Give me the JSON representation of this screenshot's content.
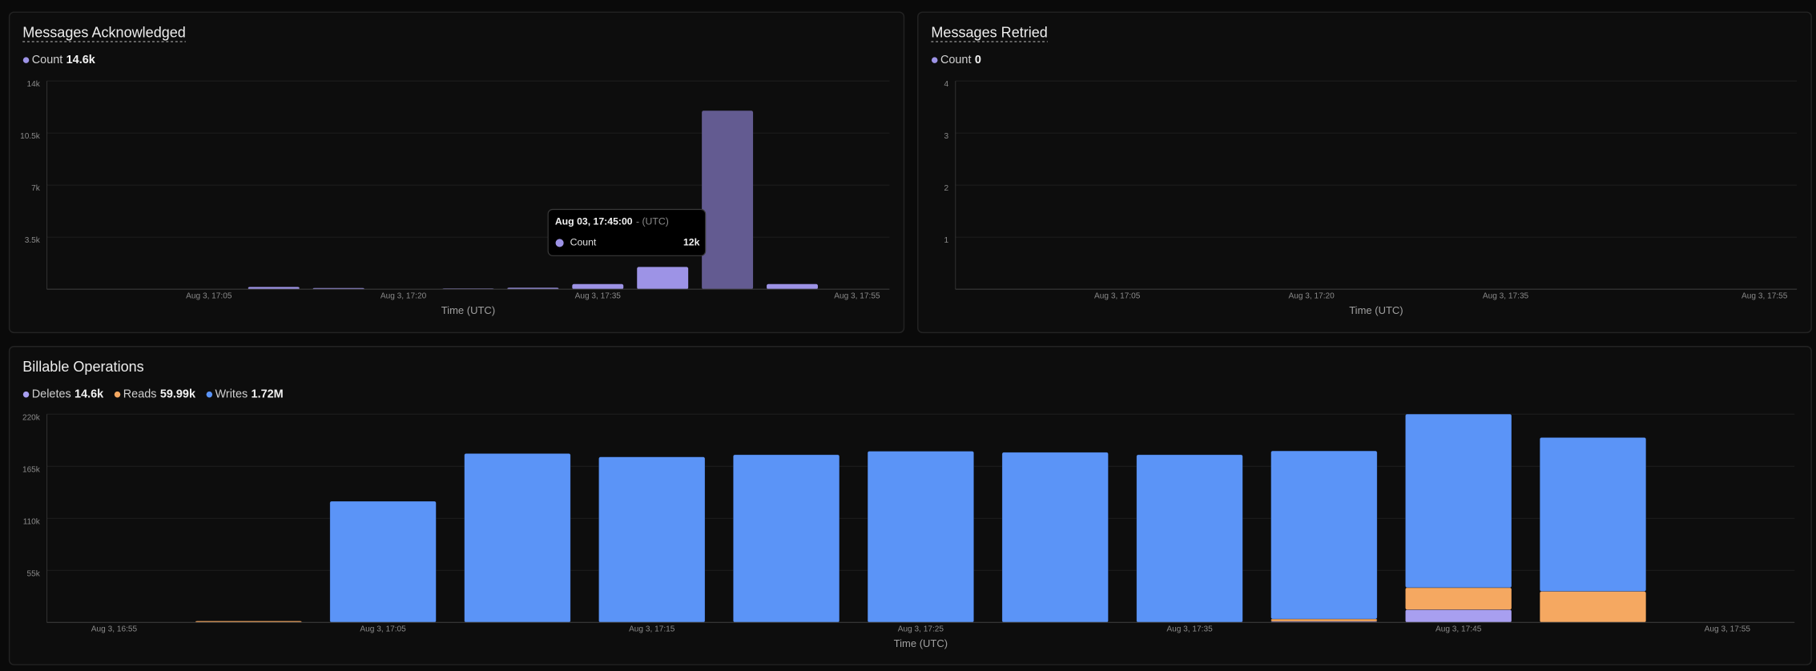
{
  "chart_data": [
    {
      "type": "bar",
      "title": "Messages Acknowledged",
      "x_label": "Time (UTC)",
      "categories": [
        null,
        null,
        "Aug 3, 17:05",
        null,
        null,
        "Aug 3, 17:20",
        null,
        null,
        "Aug 3, 17:35",
        null,
        null,
        null,
        "Aug 3, 17:55"
      ],
      "series": [
        {
          "name": "Count",
          "total": "14.6k",
          "color": "#9d93e6",
          "values": [
            0,
            0,
            0,
            150,
            80,
            0,
            50,
            100,
            350,
            1500,
            12000,
            350,
            0
          ]
        }
      ],
      "hover_index": 10,
      "hover_color": "#635b91",
      "ylim": [
        0,
        14000
      ],
      "yticks": [
        {
          "value": 3500,
          "label": "3.5k"
        },
        {
          "value": 7000,
          "label": "7k"
        },
        {
          "value": 10500,
          "label": "10.5k"
        },
        {
          "value": 14000,
          "label": "14k"
        }
      ],
      "grid": true,
      "tooltip": {
        "title": "Aug 03, 17:45:00",
        "suffix": "- (UTC)",
        "label": "Count",
        "value_label": "12k"
      }
    },
    {
      "type": "bar",
      "title": "Messages Retried",
      "x_label": "Time (UTC)",
      "categories": [
        null,
        null,
        "Aug 3, 17:05",
        null,
        null,
        "Aug 3, 17:20",
        null,
        null,
        "Aug 3, 17:35",
        null,
        null,
        null,
        "Aug 3, 17:55"
      ],
      "series": [
        {
          "name": "Count",
          "total": 0,
          "color": "#9d93e6",
          "values": [
            0,
            0,
            0,
            0,
            0,
            0,
            0,
            0,
            0,
            0,
            0,
            0,
            0
          ]
        }
      ],
      "ylim": [
        0,
        4
      ],
      "yticks": [
        1,
        2,
        3,
        4
      ],
      "grid": true
    },
    {
      "type": "stacked_bar",
      "title": "Billable Operations",
      "x_label": "Time (UTC)",
      "categories": [
        "Aug 3, 16:55",
        null,
        "Aug 3, 17:05",
        null,
        "Aug 3, 17:15",
        null,
        "Aug 3, 17:25",
        null,
        "Aug 3, 17:35",
        null,
        "Aug 3, 17:45",
        null,
        "Aug 3, 17:55"
      ],
      "series": [
        {
          "name": "Deletes",
          "total": "14.6k",
          "color": "#a89ff0",
          "values": [
            0,
            0,
            0,
            0,
            0,
            0,
            0,
            0,
            0,
            1100,
            13500,
            0,
            0
          ]
        },
        {
          "name": "Reads",
          "total": "59.99k",
          "color": "#f5a861",
          "values": [
            0,
            1500,
            0,
            0,
            0,
            0,
            0,
            0,
            0,
            2500,
            23200,
            32790,
            0
          ]
        },
        {
          "name": "Writes",
          "total": "1.72M",
          "color": "#5b94f7",
          "values": [
            0,
            0,
            128000,
            178400,
            174800,
            177200,
            180900,
            179700,
            177200,
            177600,
            183400,
            162600,
            0
          ]
        }
      ],
      "ylim": [
        0,
        220000
      ],
      "yticks": [
        {
          "value": 55000,
          "label": "55k"
        },
        {
          "value": 110000,
          "label": "110k"
        },
        {
          "value": 165000,
          "label": "165k"
        },
        {
          "value": 220000,
          "label": "220k"
        }
      ],
      "grid": true
    }
  ]
}
